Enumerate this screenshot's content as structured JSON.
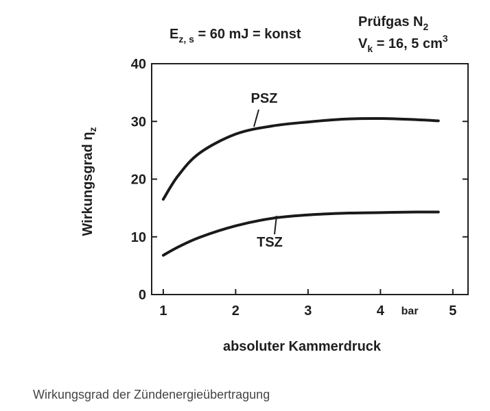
{
  "chart_data": {
    "type": "line",
    "annotation_energy": {
      "symbol": "E",
      "sub": "z, s",
      "text": " = 60 mJ = konst"
    },
    "annotation_gas": {
      "text": "Prüfgas N",
      "sub": "2"
    },
    "annotation_volume": {
      "symbol": "V",
      "sub": "k",
      "text": " = 16, 5 cm",
      "sup": "3"
    },
    "y_label": {
      "text": "Wirkungsgrad η",
      "sub": "z"
    },
    "x_label": "absoluter Kammerdruck",
    "x_unit": "bar",
    "caption": "Wirkungsgrad der Zündenergieübertragung",
    "xlim": [
      0.84,
      5.21
    ],
    "xticks": [
      1,
      2,
      3,
      4,
      5
    ],
    "ylim": [
      0,
      40
    ],
    "yticks": [
      0,
      10,
      20,
      30,
      40
    ],
    "grid": false,
    "series": [
      {
        "name": "PSZ",
        "color": "#1a1a1a",
        "x": [
          1,
          1.2,
          1.5,
          2,
          2.5,
          3,
          3.5,
          4,
          4.5,
          4.8
        ],
        "values": [
          16.5,
          20.5,
          24.5,
          27.8,
          29.2,
          29.9,
          30.4,
          30.5,
          30.3,
          30.1
        ]
      },
      {
        "name": "TSZ",
        "color": "#1a1a1a",
        "x": [
          1,
          1.2,
          1.5,
          2,
          2.5,
          3,
          3.5,
          4,
          4.5,
          4.8
        ],
        "values": [
          6.8,
          8.2,
          9.9,
          11.9,
          13.2,
          13.8,
          14.1,
          14.2,
          14.3,
          14.3
        ]
      }
    ]
  }
}
